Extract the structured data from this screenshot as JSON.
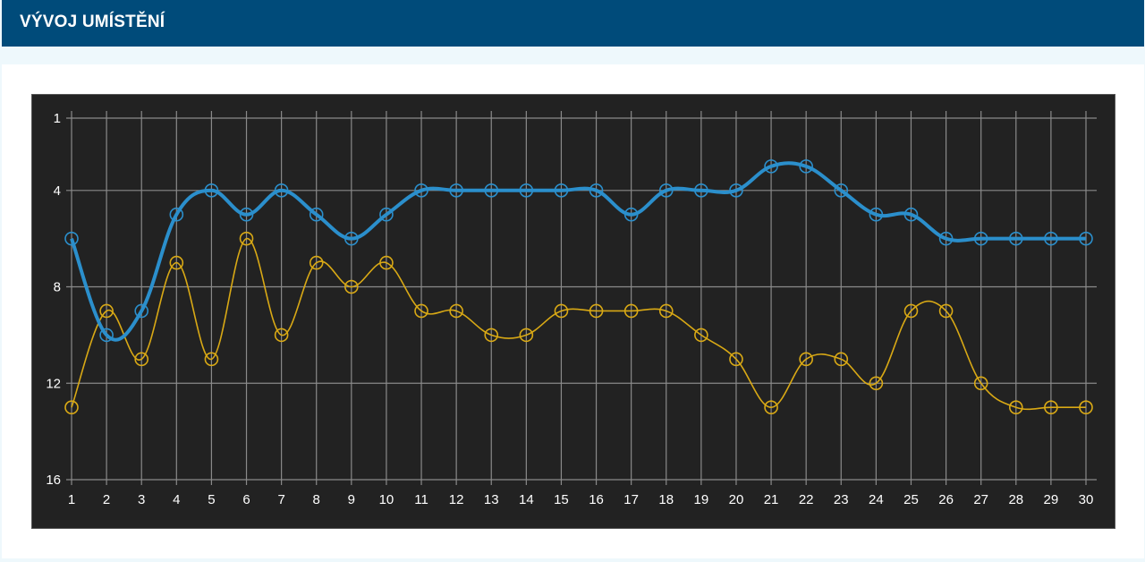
{
  "header": {
    "title": "VÝVOJ UMÍSTĚNÍ"
  },
  "chart_data": {
    "type": "line",
    "title": "",
    "xlabel": "",
    "ylabel": "",
    "x": [
      1,
      2,
      3,
      4,
      5,
      6,
      7,
      8,
      9,
      10,
      11,
      12,
      13,
      14,
      15,
      16,
      17,
      18,
      19,
      20,
      21,
      22,
      23,
      24,
      25,
      26,
      27,
      28,
      29,
      30
    ],
    "xlim": [
      1,
      30
    ],
    "ylim": [
      1,
      16
    ],
    "y_inverted": true,
    "y_ticks": [
      1,
      4,
      8,
      12,
      16
    ],
    "grid": true,
    "series": [
      {
        "color": "#2b8fcc",
        "values": [
          6,
          10,
          9,
          5,
          4,
          5,
          4,
          5,
          6,
          5,
          4,
          4,
          4,
          4,
          4,
          4,
          5,
          4,
          4,
          4,
          3,
          3,
          4,
          5,
          5,
          6,
          6,
          6,
          6,
          6
        ]
      },
      {
        "color": "#d9a915",
        "values": [
          13,
          9,
          11,
          7,
          11,
          6,
          10,
          7,
          8,
          7,
          9,
          9,
          10,
          10,
          9,
          9,
          9,
          9,
          10,
          11,
          13,
          11,
          11,
          12,
          9,
          9,
          12,
          13,
          13,
          13
        ]
      }
    ]
  }
}
